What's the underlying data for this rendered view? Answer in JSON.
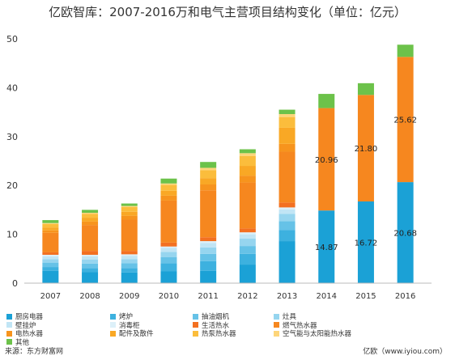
{
  "chart_data": {
    "type": "bar",
    "stacked": true,
    "title": "亿欧智库：2007-2016万和电气主营项目结构变化（单位：亿元）",
    "categories": [
      "2007",
      "2008",
      "2009",
      "2010",
      "2011",
      "2012",
      "2013",
      "2014",
      "2015",
      "2016"
    ],
    "ylim": [
      0,
      50
    ],
    "yticks": [
      0,
      10,
      20,
      30,
      40,
      50
    ],
    "grid": false,
    "legend_position": "bottom",
    "series": [
      {
        "name": "厨房电器",
        "color": "#1ba1d6",
        "values": [
          2.5,
          2.3,
          2.2,
          2.4,
          2.5,
          3.8,
          8.6,
          14.87,
          16.72,
          20.68
        ]
      },
      {
        "name": "烤炉",
        "color": "#3db1df",
        "values": [
          0.8,
          0.8,
          0.9,
          1.7,
          2.0,
          2.2,
          2.3,
          0,
          0,
          0
        ]
      },
      {
        "name": "抽油烟机",
        "color": "#66c2e7",
        "values": [
          0.9,
          0.9,
          1.0,
          1.2,
          1.5,
          1.6,
          1.8,
          0,
          0,
          0
        ]
      },
      {
        "name": "灶具",
        "color": "#96d5ef",
        "values": [
          0.7,
          0.8,
          0.8,
          1.1,
          1.3,
          1.5,
          1.5,
          0,
          0,
          0
        ]
      },
      {
        "name": "壁挂炉",
        "color": "#c1e5f5",
        "values": [
          0.6,
          0.7,
          0.7,
          0.8,
          0.9,
          0.9,
          0.9,
          0,
          0,
          0
        ]
      },
      {
        "name": "消毒柜",
        "color": "#dcf0f9",
        "values": [
          0.3,
          0.3,
          0.3,
          0.3,
          0.4,
          0.4,
          0.4,
          0,
          0,
          0
        ]
      },
      {
        "name": "生活热水",
        "color": "#f37021",
        "values": [
          0.5,
          0.8,
          0.7,
          0.8,
          0.8,
          0.8,
          1.0,
          0,
          0,
          0
        ]
      },
      {
        "name": "燃气热水器",
        "color": "#f6871f",
        "values": [
          4.0,
          5.3,
          6.4,
          8.6,
          9.6,
          9.4,
          10.4,
          20.96,
          21.8,
          25.62
        ]
      },
      {
        "name": "电热水器",
        "color": "#f7941d",
        "values": [
          0.5,
          0.7,
          0.8,
          1.0,
          1.2,
          1.4,
          1.6,
          0,
          0,
          0
        ]
      },
      {
        "name": "配件及散件",
        "color": "#f9a825",
        "values": [
          0.6,
          0.8,
          0.8,
          1.0,
          1.3,
          2.0,
          3.3,
          0,
          0,
          0
        ]
      },
      {
        "name": "热泵热水器",
        "color": "#fbbd3c",
        "values": [
          0.7,
          0.8,
          1.0,
          1.2,
          1.6,
          2.0,
          2.2,
          0,
          0,
          0
        ]
      },
      {
        "name": "空气能与太阳能热水器",
        "color": "#fdd57a",
        "values": [
          0.2,
          0.2,
          0.2,
          0.3,
          0.5,
          0.6,
          0.6,
          0,
          0,
          0
        ]
      },
      {
        "name": "其他",
        "color": "#6cc24a",
        "values": [
          0.6,
          0.6,
          0.5,
          1.0,
          1.2,
          0.8,
          0.9,
          2.9,
          2.4,
          2.5
        ]
      }
    ],
    "data_labels": [
      {
        "category": "2014",
        "series": "厨房电器",
        "text": "14.87"
      },
      {
        "category": "2015",
        "series": "厨房电器",
        "text": "16.72"
      },
      {
        "category": "2016",
        "series": "厨房电器",
        "text": "20.68"
      },
      {
        "category": "2014",
        "series": "燃气热水器",
        "text": "20.96"
      },
      {
        "category": "2015",
        "series": "燃气热水器",
        "text": "21.80"
      },
      {
        "category": "2016",
        "series": "燃气热水器",
        "text": "25.62"
      }
    ]
  },
  "footer": {
    "source": "来源：东方财富网",
    "watermark": "亿欧（www.iyiou.com）"
  }
}
